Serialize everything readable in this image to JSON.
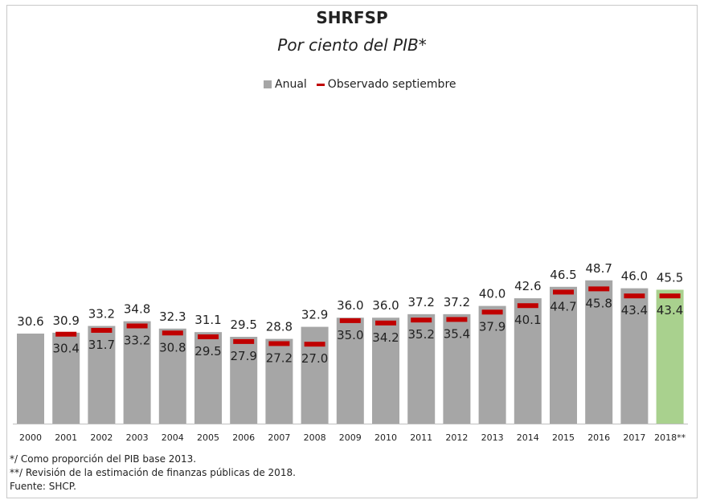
{
  "chart_data": {
    "type": "bar",
    "title": "SHRFSP",
    "subtitle": "Por ciento del PIB*",
    "categories": [
      "2000",
      "2001",
      "2002",
      "2003",
      "2004",
      "2005",
      "2006",
      "2007",
      "2008",
      "2009",
      "2010",
      "2011",
      "2012",
      "2013",
      "2014",
      "2015",
      "2016",
      "2017",
      "2018**"
    ],
    "series": [
      {
        "name": "Anual",
        "values": [
          30.6,
          30.9,
          33.2,
          34.8,
          32.3,
          31.1,
          29.5,
          28.8,
          32.9,
          36.0,
          36.0,
          37.2,
          37.2,
          40.0,
          42.6,
          46.5,
          48.7,
          46.0,
          45.5
        ],
        "color": "#a6a6a6",
        "highlight_color": "#a9d18e",
        "highlight_index": 18
      },
      {
        "name": "Observado septiembre",
        "values": [
          null,
          30.4,
          31.7,
          33.2,
          30.8,
          29.5,
          27.9,
          27.2,
          27.0,
          35.0,
          34.2,
          35.2,
          35.4,
          37.9,
          40.1,
          44.7,
          45.8,
          43.4,
          43.4
        ],
        "color": "#c00000",
        "style": "dash"
      }
    ],
    "legend_position": "top-center",
    "grid": false
  },
  "footnotes": [
    "*/ Como proporción del PIB base 2013.",
    "**/ Revisión de la estimación de finanzas públicas de 2018.",
    "Fuente: SHCP."
  ]
}
